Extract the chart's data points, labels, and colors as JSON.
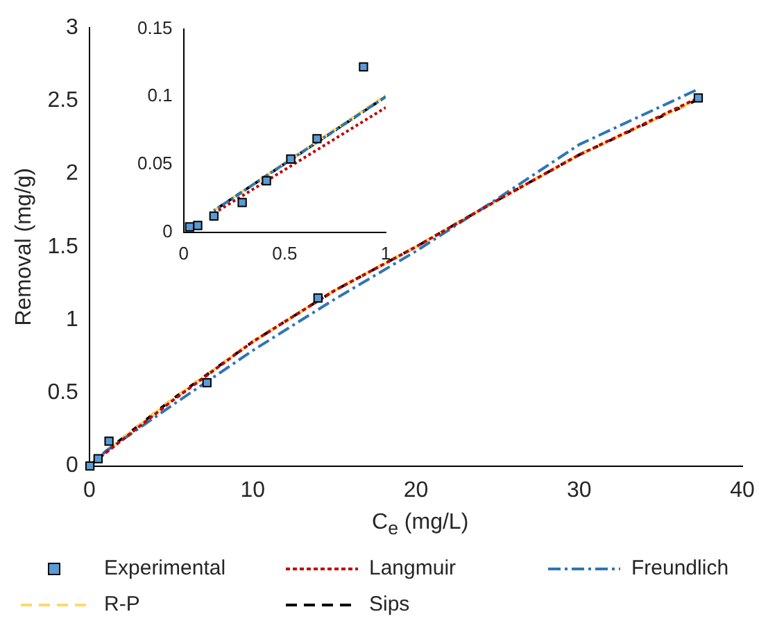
{
  "chart_data": [
    {
      "type": "line",
      "xlabel": "C$_{e}$ (mg/L)",
      "ylabel": "Removal (mg/g)",
      "xlim": [
        0,
        40
      ],
      "xticks": [
        0,
        10,
        20,
        30,
        40
      ],
      "ylim": [
        0,
        3
      ],
      "yticks": [
        0,
        0.5,
        1,
        1.5,
        2,
        2.5,
        3
      ],
      "grid": false,
      "legend": "bottom",
      "series": [
        {
          "name": "Experimental",
          "type": "scatter",
          "marker": "square",
          "color": "#5b9bd5",
          "x": [
            0.03,
            0.53,
            1.2,
            7.2,
            14.0,
            37.3
          ],
          "values": [
            0,
            0.05,
            0.17,
            0.57,
            1.15,
            2.52
          ]
        },
        {
          "name": "Langmuir",
          "type": "line",
          "marker": "none",
          "line_style": "dotted",
          "color": "#c00000",
          "x": [
            0,
            1,
            5,
            10,
            15,
            20,
            25,
            30,
            37.3
          ],
          "values": [
            0,
            0.09,
            0.44,
            0.85,
            1.2,
            1.5,
            1.82,
            2.13,
            2.52
          ]
        },
        {
          "name": "Freundlich",
          "type": "line",
          "marker": "none",
          "line_style": "dashdot",
          "color": "#2e75b6",
          "x": [
            0,
            1,
            5,
            10,
            15,
            20,
            25,
            30,
            37.3
          ],
          "values": [
            0,
            0.1,
            0.41,
            0.79,
            1.14,
            1.47,
            1.83,
            2.2,
            2.58
          ]
        },
        {
          "name": "R-P",
          "type": "line",
          "marker": "none",
          "line_style": "dashed",
          "color": "#ffd966",
          "x": [
            0,
            1,
            5,
            10,
            15,
            20,
            25,
            30,
            37.3
          ],
          "values": [
            0,
            0.1,
            0.45,
            0.85,
            1.2,
            1.5,
            1.82,
            2.13,
            2.51
          ]
        },
        {
          "name": "Sips",
          "type": "line",
          "marker": "none",
          "line_style": "dashed",
          "color": "#000000",
          "x": [
            0,
            1,
            5,
            10,
            15,
            20,
            25,
            30,
            37.3
          ],
          "values": [
            0,
            0.1,
            0.45,
            0.85,
            1.2,
            1.5,
            1.82,
            2.13,
            2.51
          ]
        }
      ]
    },
    {
      "type": "line",
      "xlim": [
        0,
        1
      ],
      "xticks": [
        0,
        0.5,
        1
      ],
      "ylim": [
        0,
        0.15
      ],
      "yticks": [
        0,
        0.05,
        0.1,
        0.15
      ],
      "grid": false,
      "series": [
        {
          "type": "scatter",
          "marker": "square",
          "color": "#5b9bd5",
          "x": [
            0.03,
            0.07,
            0.15,
            0.29,
            0.41,
            0.53,
            0.66,
            0.89
          ],
          "values": [
            0.004,
            0.005,
            0.012,
            0.022,
            0.038,
            0.054,
            0.069,
            0.122
          ]
        },
        {
          "type": "line",
          "marker": "none",
          "line_style": "dotted",
          "color": "#c00000",
          "x": [
            0.15,
            1
          ],
          "values": [
            0.014,
            0.092
          ]
        },
        {
          "type": "line",
          "marker": "none",
          "line_style": "dashdot",
          "color": "#2e75b6",
          "x": [
            0.15,
            1
          ],
          "values": [
            0.016,
            0.1
          ]
        },
        {
          "type": "line",
          "marker": "none",
          "line_style": "dashed",
          "color": "#ffd966",
          "x": [
            0.15,
            1
          ],
          "values": [
            0.016,
            0.101
          ]
        },
        {
          "type": "line",
          "marker": "none",
          "line_style": "dashed",
          "color": "#000000",
          "x": [
            0.15,
            1
          ],
          "values": [
            0.016,
            0.1
          ]
        }
      ]
    }
  ]
}
